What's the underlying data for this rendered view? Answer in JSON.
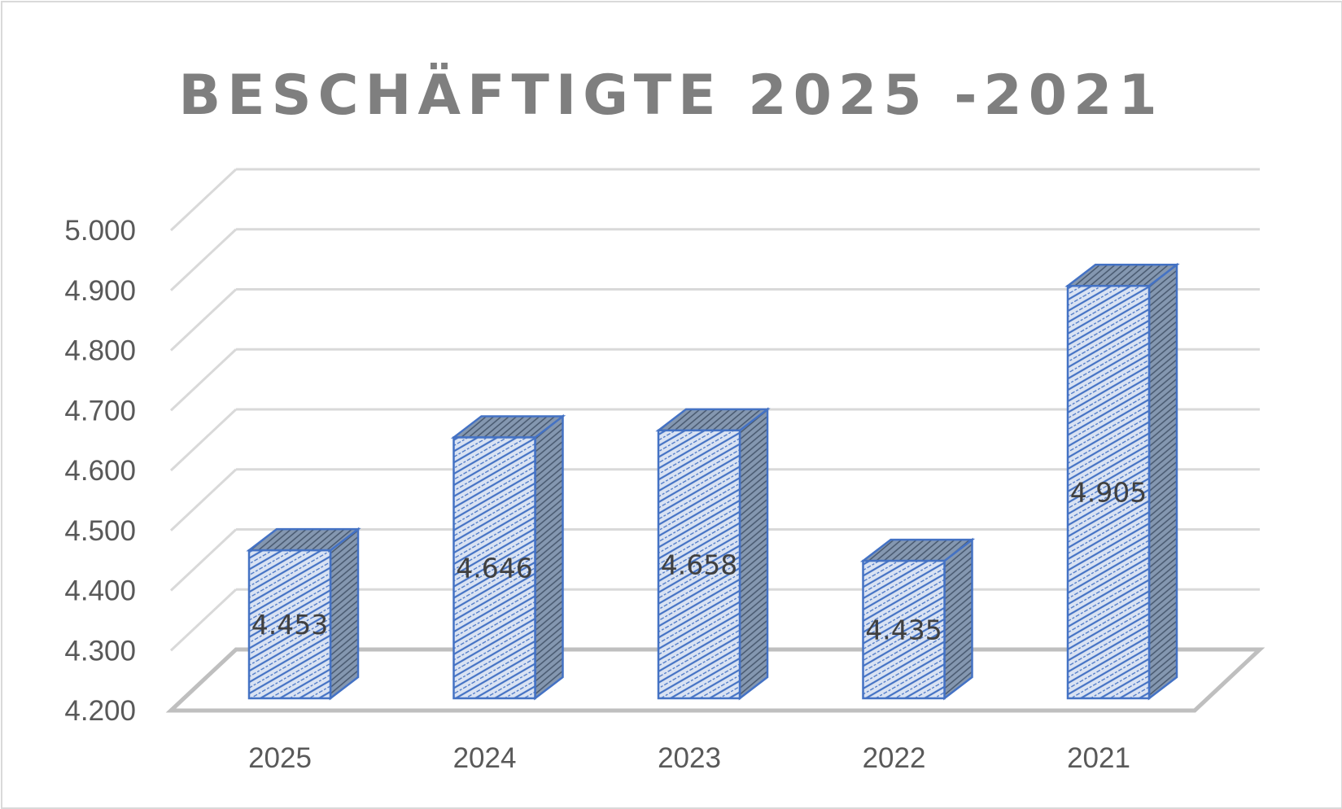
{
  "chart_data": {
    "type": "bar",
    "title": "BESCHÄFTIGTE 2025 -2021",
    "xlabel": "",
    "ylabel": "",
    "categories": [
      "2025",
      "2024",
      "2023",
      "2022",
      "2021"
    ],
    "values": [
      4453,
      4646,
      4658,
      4435,
      4905
    ],
    "value_labels": [
      "4.453",
      "4.646",
      "4.658",
      "4.435",
      "4.905"
    ],
    "ylim": [
      4200,
      5000
    ],
    "y_ticks": [
      4200,
      4300,
      4400,
      4500,
      4600,
      4700,
      4800,
      4900,
      5000
    ],
    "y_tick_labels": [
      "4.200",
      "4.300",
      "4.400",
      "4.500",
      "4.600",
      "4.700",
      "4.800",
      "4.900",
      "5.000"
    ],
    "grid": true,
    "legend": "none",
    "style": "3d-column-hatched",
    "colors": {
      "bar_fill": "#dae3f3",
      "bar_hatch": "#4472c4",
      "bar_border": "#4472c4",
      "bar_side": "#8497b0",
      "grid": "#d9d9d9",
      "floor": "#bfbfbf",
      "title": "#7f7f7f",
      "tick_text": "#595959",
      "data_label_text": "#404040"
    }
  }
}
